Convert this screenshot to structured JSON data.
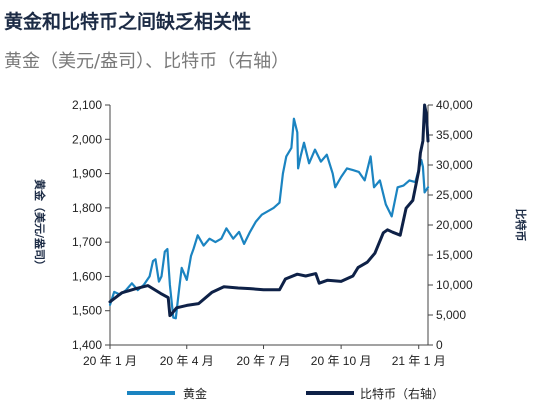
{
  "title": "黄金和比特币之间缺乏相关性",
  "subtitle": "黄金（美元/盎司）、比特币（右轴）",
  "colors": {
    "gold": "#1b84c1",
    "bitcoin": "#0e2147",
    "axis": "#444444"
  },
  "chart_data": {
    "type": "line",
    "ylabel": "黄金（美元/盎司）",
    "y2label": "比特币",
    "ylim": [
      1400,
      2100
    ],
    "y2lim": [
      0,
      40000
    ],
    "yticks": [
      "1,400",
      "1,500",
      "1,600",
      "1,700",
      "1,800",
      "1,900",
      "2,000",
      "2,100"
    ],
    "y2ticks": [
      "0",
      "5,000",
      "10,000",
      "15,000",
      "20,000",
      "25,000",
      "30,000",
      "35,000",
      "40,000"
    ],
    "xticks": [
      "20 年 1 月",
      "20 年 4 月",
      "20 年 7 月",
      "20 年 10 月",
      "21 年 1 月"
    ],
    "legend": "bottom",
    "series": [
      {
        "name": "黄金",
        "axis": "left",
        "x": [
          "2020-01-01",
          "2020-01-06",
          "2020-01-13",
          "2020-01-20",
          "2020-01-27",
          "2020-02-03",
          "2020-02-10",
          "2020-02-17",
          "2020-02-21",
          "2020-02-24",
          "2020-02-28",
          "2020-03-02",
          "2020-03-06",
          "2020-03-09",
          "2020-03-12",
          "2020-03-16",
          "2020-03-19",
          "2020-03-23",
          "2020-03-26",
          "2020-04-01",
          "2020-04-06",
          "2020-04-09",
          "2020-04-14",
          "2020-04-21",
          "2020-04-28",
          "2020-05-05",
          "2020-05-12",
          "2020-05-18",
          "2020-05-26",
          "2020-06-02",
          "2020-06-08",
          "2020-06-15",
          "2020-06-22",
          "2020-06-29",
          "2020-07-06",
          "2020-07-13",
          "2020-07-20",
          "2020-07-24",
          "2020-07-28",
          "2020-08-03",
          "2020-08-06",
          "2020-08-10",
          "2020-08-11",
          "2020-08-14",
          "2020-08-18",
          "2020-08-24",
          "2020-08-31",
          "2020-09-07",
          "2020-09-14",
          "2020-09-21",
          "2020-09-24",
          "2020-10-01",
          "2020-10-08",
          "2020-10-15",
          "2020-10-22",
          "2020-10-29",
          "2020-11-05",
          "2020-11-09",
          "2020-11-16",
          "2020-11-23",
          "2020-11-30",
          "2020-12-07",
          "2020-12-14",
          "2020-12-21",
          "2020-12-28",
          "2021-01-04",
          "2021-01-06",
          "2021-01-08",
          "2021-01-12"
        ],
        "values": [
          1517,
          1555,
          1547,
          1560,
          1580,
          1560,
          1575,
          1600,
          1645,
          1650,
          1585,
          1600,
          1672,
          1680,
          1575,
          1480,
          1478,
          1565,
          1625,
          1590,
          1660,
          1680,
          1720,
          1690,
          1710,
          1700,
          1710,
          1740,
          1710,
          1730,
          1695,
          1730,
          1760,
          1780,
          1790,
          1800,
          1815,
          1900,
          1950,
          1975,
          2060,
          2020,
          1915,
          1950,
          1990,
          1930,
          1970,
          1935,
          1955,
          1900,
          1860,
          1890,
          1915,
          1910,
          1905,
          1880,
          1950,
          1860,
          1880,
          1810,
          1775,
          1860,
          1865,
          1880,
          1875,
          1940,
          1920,
          1845,
          1860
        ]
      },
      {
        "name": "比特币（右轴）",
        "axis": "right",
        "x": [
          "2020-01-01",
          "2020-01-15",
          "2020-02-01",
          "2020-02-15",
          "2020-03-01",
          "2020-03-10",
          "2020-03-12",
          "2020-03-13",
          "2020-03-20",
          "2020-04-01",
          "2020-04-15",
          "2020-05-01",
          "2020-05-15",
          "2020-06-01",
          "2020-06-15",
          "2020-07-01",
          "2020-07-20",
          "2020-07-27",
          "2020-08-10",
          "2020-08-20",
          "2020-09-01",
          "2020-09-05",
          "2020-09-15",
          "2020-10-01",
          "2020-10-15",
          "2020-10-21",
          "2020-11-01",
          "2020-11-10",
          "2020-11-20",
          "2020-11-25",
          "2020-12-01",
          "2020-12-10",
          "2020-12-17",
          "2020-12-25",
          "2021-01-01",
          "2021-01-03",
          "2021-01-06",
          "2021-01-08",
          "2021-01-10",
          "2021-01-12"
        ],
        "values": [
          7200,
          8700,
          9400,
          9900,
          8600,
          7900,
          4900,
          5000,
          6200,
          6600,
          6900,
          8800,
          9700,
          9500,
          9400,
          9200,
          9200,
          11000,
          11800,
          11500,
          11900,
          10300,
          10800,
          10600,
          11500,
          12900,
          13800,
          15300,
          18700,
          19200,
          18800,
          18300,
          22800,
          24100,
          29000,
          32000,
          34000,
          40000,
          38500,
          34000
        ]
      }
    ]
  }
}
